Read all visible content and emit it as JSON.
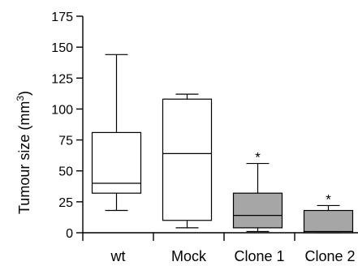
{
  "chart_data": {
    "type": "box",
    "ylabel": "Tumour size (mm³)",
    "ylabel_base": "Tumour size (mm",
    "ylabel_sup": "3",
    "ylabel_close": ")",
    "ylim": [
      0,
      175
    ],
    "yticks": [
      0,
      25,
      50,
      75,
      100,
      125,
      150,
      175
    ],
    "categories": [
      "wt",
      "Mock",
      "Clone 1",
      "Clone 2"
    ],
    "boxes": [
      {
        "name": "wt",
        "min": 18,
        "q1": 32,
        "median": 40,
        "q3": 81,
        "max": 144,
        "fill": "#ffffff",
        "annotation": ""
      },
      {
        "name": "Mock",
        "min": 4,
        "q1": 10,
        "median": 64,
        "q3": 108,
        "max": 112,
        "fill": "#ffffff",
        "annotation": ""
      },
      {
        "name": "Clone 1",
        "min": 1,
        "q1": 4,
        "median": 14,
        "q3": 32,
        "max": 56,
        "fill": "#a6a6a6",
        "annotation": "*"
      },
      {
        "name": "Clone 2",
        "min": 0,
        "q1": 0,
        "median": 1,
        "q3": 18,
        "max": 22,
        "fill": "#a6a6a6",
        "annotation": "*"
      }
    ]
  }
}
